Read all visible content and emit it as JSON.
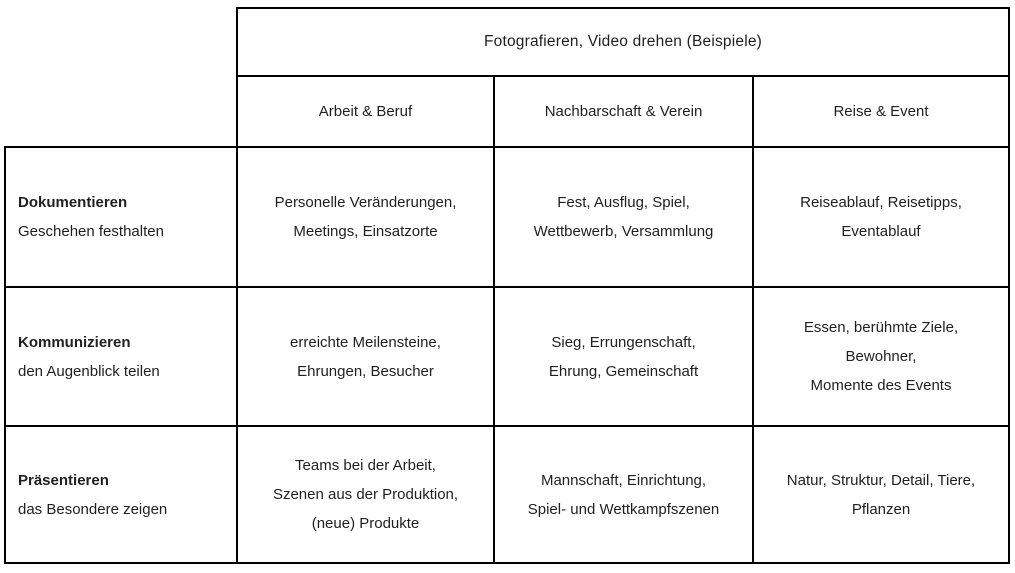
{
  "colors": {
    "background": "#ffffff",
    "border": "#000000",
    "text": "#1f1f1f"
  },
  "table": {
    "title": "Fotografieren, Video drehen (Beispiele)",
    "columns": [
      "Arbeit & Beruf",
      "Nachbarschaft & Verein",
      "Reise & Event"
    ],
    "rows": [
      {
        "title": "Dokumentieren",
        "subtitle": "Geschehen festhalten",
        "cells": [
          [
            "Personelle Veränderungen,",
            "Meetings, Einsatzorte"
          ],
          [
            "Fest, Ausflug, Spiel,",
            "Wettbewerb, Versammlung"
          ],
          [
            "Reiseablauf, Reisetipps,",
            "Eventablauf"
          ]
        ]
      },
      {
        "title": "Kommunizieren",
        "subtitle": "den Augenblick teilen",
        "cells": [
          [
            "erreichte Meilensteine,",
            "Ehrungen, Besucher"
          ],
          [
            "Sieg, Errungenschaft,",
            "Ehrung, Gemeinschaft"
          ],
          [
            "Essen, berühmte Ziele,",
            "Bewohner,",
            "Momente des Events"
          ]
        ]
      },
      {
        "title": "Präsentieren",
        "subtitle": "das Besondere zeigen",
        "cells": [
          [
            "Teams bei der Arbeit,",
            "Szenen aus der Produktion,",
            "(neue) Produkte"
          ],
          [
            "Mannschaft, Einrichtung,",
            "Spiel- und Wettkampfszenen"
          ],
          [
            "Natur, Struktur, Detail, Tiere,",
            "Pflanzen"
          ]
        ]
      }
    ]
  }
}
